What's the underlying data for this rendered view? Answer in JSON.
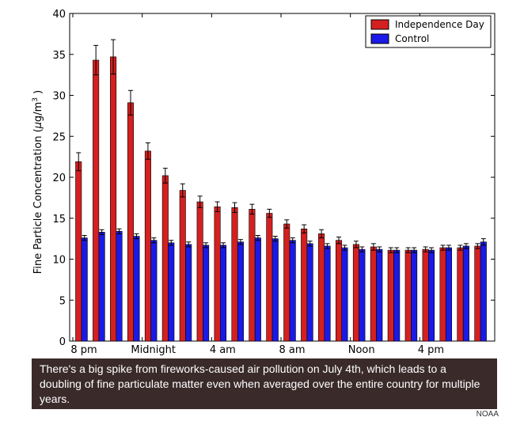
{
  "chart_data": {
    "type": "bar",
    "ylabel": "Fine Particle Concentration (μg/m³)",
    "ylim": [
      0,
      40
    ],
    "yticks": [
      0,
      5,
      10,
      15,
      20,
      25,
      30,
      35,
      40
    ],
    "x_tick_labels": [
      {
        "label": "8 pm",
        "index": 0
      },
      {
        "label": "Midnight",
        "index": 4
      },
      {
        "label": "4 am",
        "index": 8
      },
      {
        "label": "8 am",
        "index": 12
      },
      {
        "label": "Noon",
        "index": 16
      },
      {
        "label": "4 pm",
        "index": 20
      }
    ],
    "legend": {
      "position": "top-right"
    },
    "series": [
      {
        "name": "Independence Day",
        "color": "#d42020",
        "values": [
          21.9,
          34.3,
          34.7,
          29.1,
          23.2,
          20.2,
          18.4,
          17.0,
          16.4,
          16.3,
          16.1,
          15.6,
          14.3,
          13.7,
          13.1,
          12.3,
          11.8,
          11.5,
          11.1,
          11.1,
          11.2,
          11.4,
          11.4,
          11.6
        ],
        "errors": [
          1.1,
          1.8,
          2.1,
          1.5,
          1.0,
          0.9,
          0.8,
          0.7,
          0.6,
          0.6,
          0.6,
          0.5,
          0.5,
          0.5,
          0.5,
          0.4,
          0.4,
          0.4,
          0.3,
          0.3,
          0.3,
          0.3,
          0.3,
          0.3
        ]
      },
      {
        "name": "Control",
        "color": "#1a1ae6",
        "values": [
          12.6,
          13.3,
          13.4,
          12.8,
          12.3,
          12.0,
          11.8,
          11.7,
          11.7,
          12.1,
          12.6,
          12.5,
          12.3,
          11.9,
          11.6,
          11.4,
          11.2,
          11.2,
          11.1,
          11.1,
          11.1,
          11.4,
          11.6,
          12.1
        ],
        "errors": [
          0.3,
          0.3,
          0.3,
          0.3,
          0.3,
          0.3,
          0.3,
          0.3,
          0.3,
          0.3,
          0.3,
          0.3,
          0.3,
          0.3,
          0.3,
          0.3,
          0.3,
          0.3,
          0.3,
          0.3,
          0.3,
          0.3,
          0.3,
          0.4
        ]
      }
    ]
  },
  "caption": "There's a big spike from fireworks-caused air pollution on July 4th, which leads to a doubling of fine particulate matter even when averaged over the entire country for multiple years.",
  "credit": "NOAA"
}
